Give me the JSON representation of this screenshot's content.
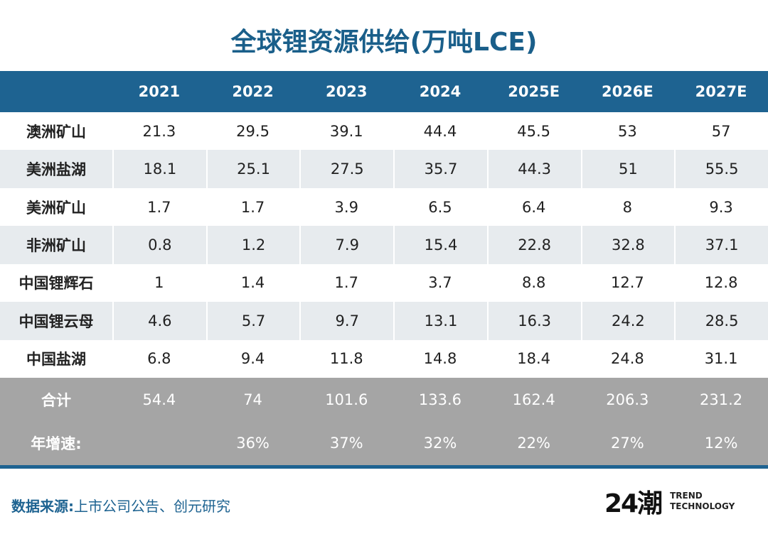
{
  "header": {
    "title": "全球锂资源供给(万吨LCE)"
  },
  "table": {
    "columns": [
      "2021",
      "2022",
      "2023",
      "2024",
      "2025E",
      "2026E",
      "2027E"
    ],
    "rows": [
      [
        "澳洲矿山",
        21.3,
        29.5,
        39.1,
        44.4,
        45.5,
        53,
        57
      ],
      [
        "美洲盐湖",
        18.1,
        25.1,
        27.5,
        35.7,
        44.3,
        51,
        55.5
      ],
      [
        "美洲矿山",
        1.7,
        1.7,
        3.9,
        6.5,
        6.4,
        8,
        9.3
      ],
      [
        "非洲矿山",
        0.8,
        1.2,
        7.9,
        15.4,
        22.8,
        32.8,
        37.1
      ],
      [
        "中国锂辉石",
        1,
        1.4,
        1.7,
        3.7,
        8.8,
        12.7,
        12.8
      ],
      [
        "中国锂云母",
        4.6,
        5.7,
        9.7,
        13.1,
        16.3,
        24.2,
        28.5
      ],
      [
        "中国盐湖",
        6.8,
        9.4,
        11.8,
        14.8,
        18.4,
        24.8,
        31.1
      ]
    ],
    "summary": [
      [
        "合计",
        54.4,
        74,
        101.6,
        133.6,
        162.4,
        206.3,
        231.2
      ],
      [
        "年增速:",
        null,
        "36%",
        "37%",
        "32%",
        "22%",
        "27%",
        "12%"
      ]
    ]
  },
  "source": {
    "label": "数据来源:",
    "text": "上市公司公告、创元研究"
  },
  "logo": {
    "mark": "24潮",
    "line1": "TREND",
    "line2": "TECHNOLOGY"
  }
}
